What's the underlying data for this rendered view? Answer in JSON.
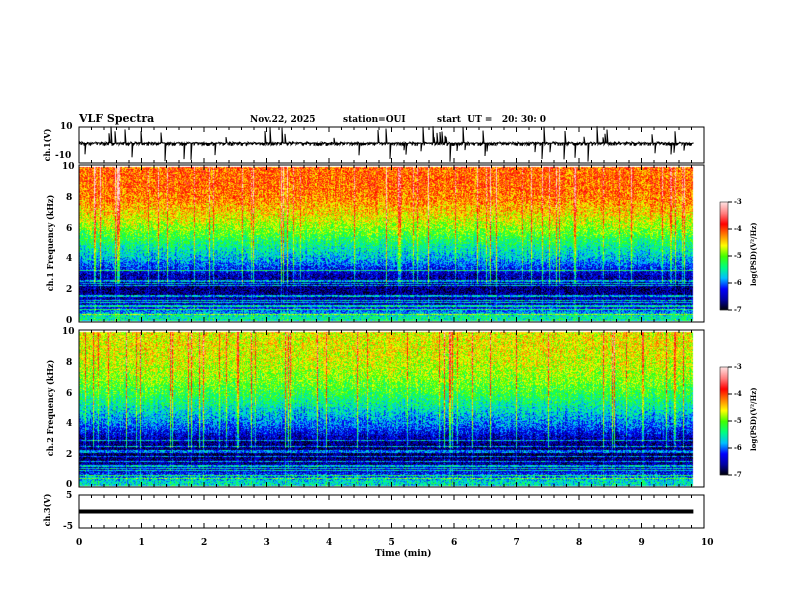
{
  "header": {
    "title": "VLF Spectra",
    "date": "Nov.22, 2025",
    "station": "station=OUI",
    "start": "start  UT =   20: 30: 0"
  },
  "colors": {
    "axis": "#000000",
    "colormap": [
      "#000000",
      "#0000a0",
      "#0000ff",
      "#00c0ff",
      "#00ff80",
      "#40ff00",
      "#ffff00",
      "#ff8000",
      "#ff0000",
      "#ff8080",
      "#ffe0e0"
    ]
  },
  "chart_data": [
    {
      "type": "line",
      "name": "ch1 waveform",
      "ylabel": "ch.1(V)",
      "ylim": [
        -10,
        10
      ],
      "yticks": [
        "10",
        "-10"
      ],
      "xlim": [
        0,
        10
      ],
      "x_end": 9.83,
      "baseline": 0,
      "spike_range": [
        -6,
        8
      ]
    },
    {
      "type": "heatmap",
      "name": "ch1 spectrogram",
      "ylabel": "ch.1 Frequency (kHz)",
      "ylim": [
        0,
        10
      ],
      "yticks": [
        "0",
        "2",
        "4",
        "6",
        "8",
        "10"
      ],
      "xlim": [
        0,
        10
      ],
      "x_end": 9.83,
      "profile_freq_khz": [
        0.3,
        1,
        2,
        3,
        4,
        5,
        6,
        7,
        8,
        9,
        10
      ],
      "profile_logpsd": [
        -5.5,
        -6.4,
        -6.7,
        -6.5,
        -5.8,
        -5.4,
        -4.9,
        -4.5,
        -4.2,
        -4.1,
        -4.1
      ],
      "colorbar": {
        "label": "log(PSD)(V²/Hz)",
        "range": [
          -7,
          -3
        ],
        "ticks": [
          "-3",
          "-4",
          "-5",
          "-6",
          "-7"
        ]
      }
    },
    {
      "type": "heatmap",
      "name": "ch2 spectrogram",
      "ylabel": "ch.2 Frequency (kHz)",
      "ylim": [
        0,
        10
      ],
      "yticks": [
        "0",
        "2",
        "4",
        "6",
        "8",
        "10"
      ],
      "xlim": [
        0,
        10
      ],
      "x_end": 9.83,
      "profile_freq_khz": [
        0.3,
        1,
        2,
        3,
        4,
        5,
        6,
        7,
        8,
        9,
        10
      ],
      "profile_logpsd": [
        -5.6,
        -6.4,
        -6.8,
        -6.6,
        -6.0,
        -5.6,
        -5.2,
        -4.9,
        -4.7,
        -4.6,
        -4.6
      ],
      "colorbar": {
        "label": "log(PSD)(V²/Hz)",
        "range": [
          -7,
          -3
        ],
        "ticks": [
          "-3",
          "-4",
          "-5",
          "-6",
          "-7"
        ]
      }
    },
    {
      "type": "line",
      "name": "ch3 waveform",
      "ylabel": "ch.3(V)",
      "ylim": [
        -5,
        5
      ],
      "yticks": [
        "5",
        "-5"
      ],
      "xlim": [
        0,
        10
      ],
      "x_end": 9.83,
      "value": 0
    },
    {
      "type": "axis",
      "xlabel": "Time (min)",
      "xticks": [
        "0",
        "1",
        "2",
        "3",
        "4",
        "5",
        "6",
        "7",
        "8",
        "9",
        "10"
      ]
    }
  ]
}
